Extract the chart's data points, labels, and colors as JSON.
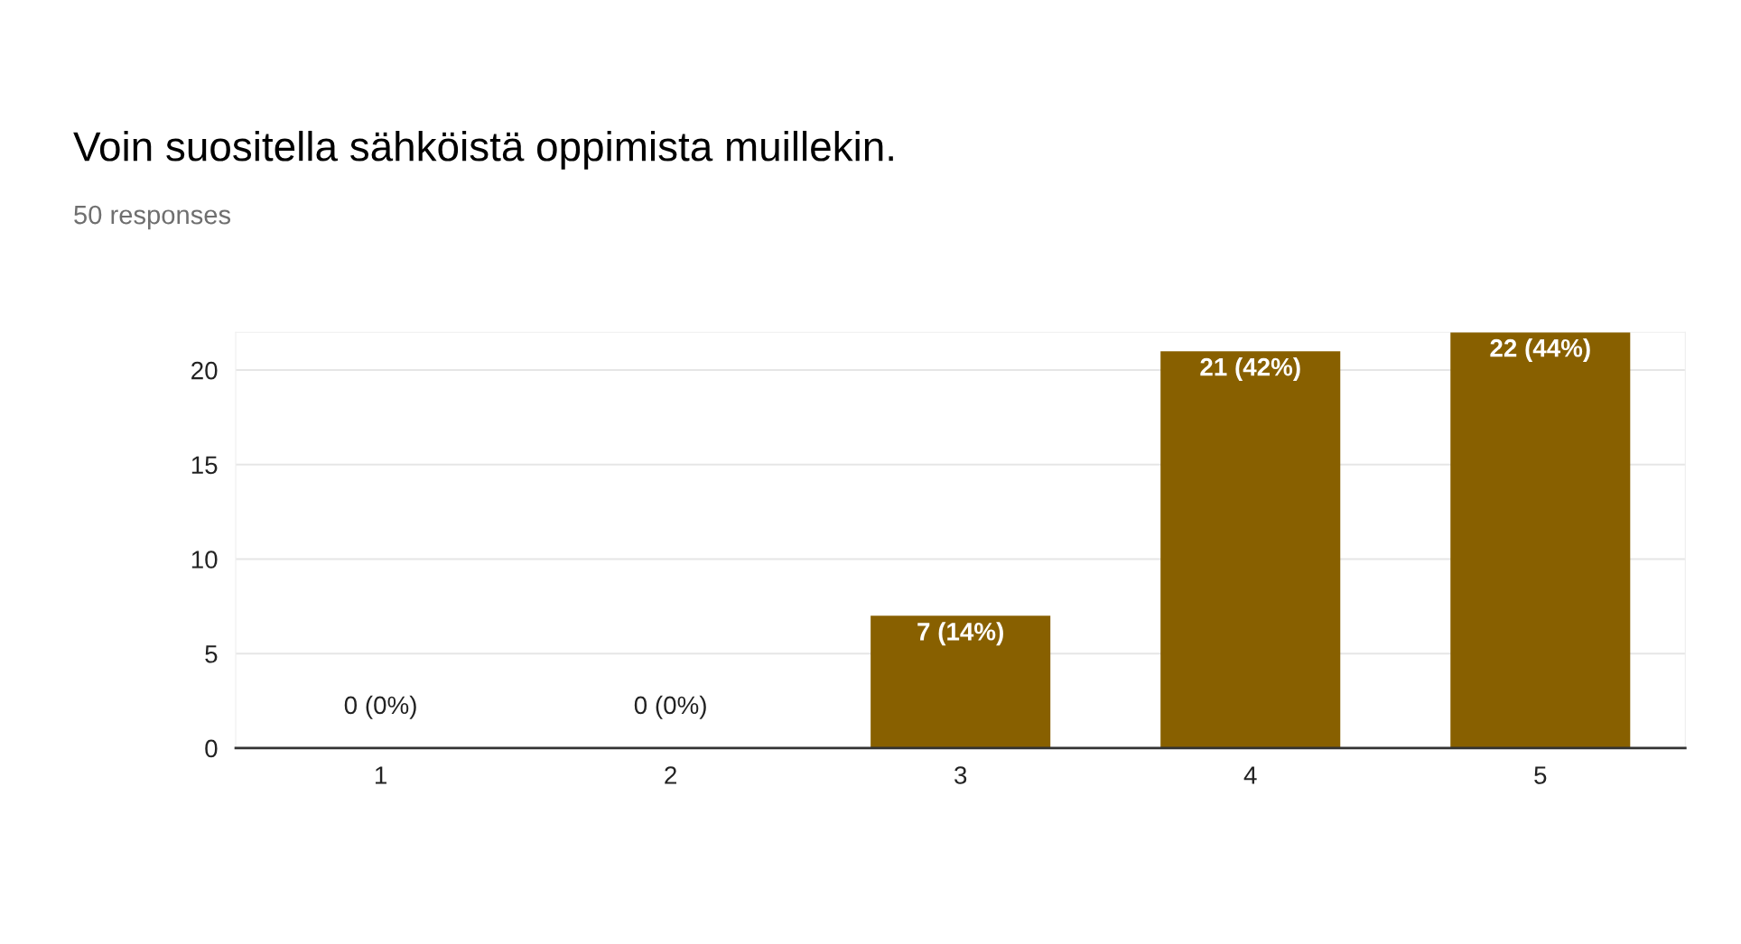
{
  "chart_data": {
    "type": "bar",
    "title": "Voin suositella sähköistä oppimista muillekin.",
    "subtitle": "50 responses",
    "categories": [
      "1",
      "2",
      "3",
      "4",
      "5"
    ],
    "values": [
      0,
      0,
      7,
      21,
      22
    ],
    "value_labels": [
      "0 (0%)",
      "0 (0%)",
      "7 (14%)",
      "21 (42%)",
      "22 (44%)"
    ],
    "color": "#886000",
    "ylim": [
      0,
      22
    ],
    "yticks": [
      0,
      5,
      10,
      15,
      20
    ],
    "grid": "y",
    "legend": false
  }
}
